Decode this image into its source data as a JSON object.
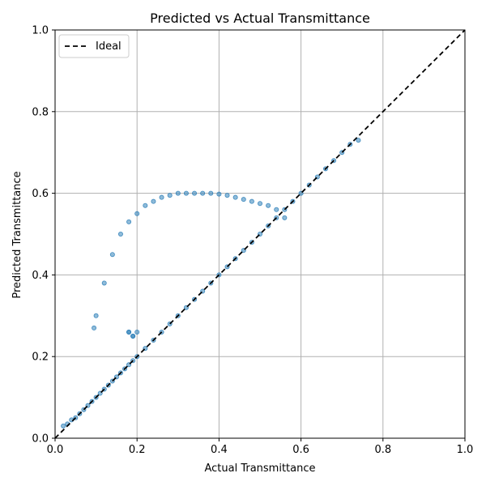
{
  "chart_data": {
    "type": "scatter",
    "title": "Predicted vs Actual Transmittance",
    "xlabel": "Actual Transmittance",
    "ylabel": "Predicted Transmittance",
    "xlim": [
      0.0,
      1.0
    ],
    "ylim": [
      0.0,
      1.0
    ],
    "xticks": [
      "0.0",
      "0.2",
      "0.4",
      "0.6",
      "0.8",
      "1.0"
    ],
    "yticks": [
      "0.0",
      "0.2",
      "0.4",
      "0.6",
      "0.8",
      "1.0"
    ],
    "grid": true,
    "legend": {
      "placement": "top-left",
      "entries": [
        "Ideal"
      ]
    },
    "colors": {
      "points": "#1f77b4",
      "ideal_line": "#000000",
      "grid": "#b0b0b0"
    },
    "series": [
      {
        "type": "scatter",
        "x": [
          0.02,
          0.03,
          0.04,
          0.05,
          0.06,
          0.07,
          0.08,
          0.09,
          0.1,
          0.11,
          0.12,
          0.13,
          0.14,
          0.15,
          0.16,
          0.17,
          0.18,
          0.19,
          0.2,
          0.22,
          0.24,
          0.26,
          0.28,
          0.3,
          0.32,
          0.34,
          0.36,
          0.38,
          0.4,
          0.42,
          0.44,
          0.46,
          0.48,
          0.5,
          0.52,
          0.54,
          0.56,
          0.58,
          0.6,
          0.62,
          0.64,
          0.66,
          0.68,
          0.7,
          0.72,
          0.74,
          0.095,
          0.1,
          0.12,
          0.14,
          0.16,
          0.18,
          0.2,
          0.22,
          0.24,
          0.26,
          0.28,
          0.3,
          0.32,
          0.34,
          0.36,
          0.38,
          0.4,
          0.42,
          0.44,
          0.46,
          0.48,
          0.5,
          0.52,
          0.54,
          0.56,
          0.18,
          0.19,
          0.2,
          0.19,
          0.18
        ],
        "y": [
          0.03,
          0.035,
          0.045,
          0.05,
          0.06,
          0.07,
          0.08,
          0.09,
          0.1,
          0.11,
          0.12,
          0.13,
          0.14,
          0.15,
          0.16,
          0.17,
          0.18,
          0.19,
          0.2,
          0.22,
          0.24,
          0.26,
          0.28,
          0.3,
          0.32,
          0.34,
          0.36,
          0.38,
          0.4,
          0.42,
          0.44,
          0.46,
          0.48,
          0.5,
          0.52,
          0.54,
          0.56,
          0.58,
          0.6,
          0.62,
          0.64,
          0.66,
          0.68,
          0.7,
          0.72,
          0.73,
          0.27,
          0.3,
          0.38,
          0.45,
          0.5,
          0.53,
          0.55,
          0.57,
          0.58,
          0.59,
          0.595,
          0.6,
          0.6,
          0.6,
          0.6,
          0.6,
          0.598,
          0.595,
          0.59,
          0.585,
          0.58,
          0.575,
          0.57,
          0.56,
          0.54,
          0.26,
          0.25,
          0.26,
          0.25,
          0.26
        ]
      }
    ]
  }
}
